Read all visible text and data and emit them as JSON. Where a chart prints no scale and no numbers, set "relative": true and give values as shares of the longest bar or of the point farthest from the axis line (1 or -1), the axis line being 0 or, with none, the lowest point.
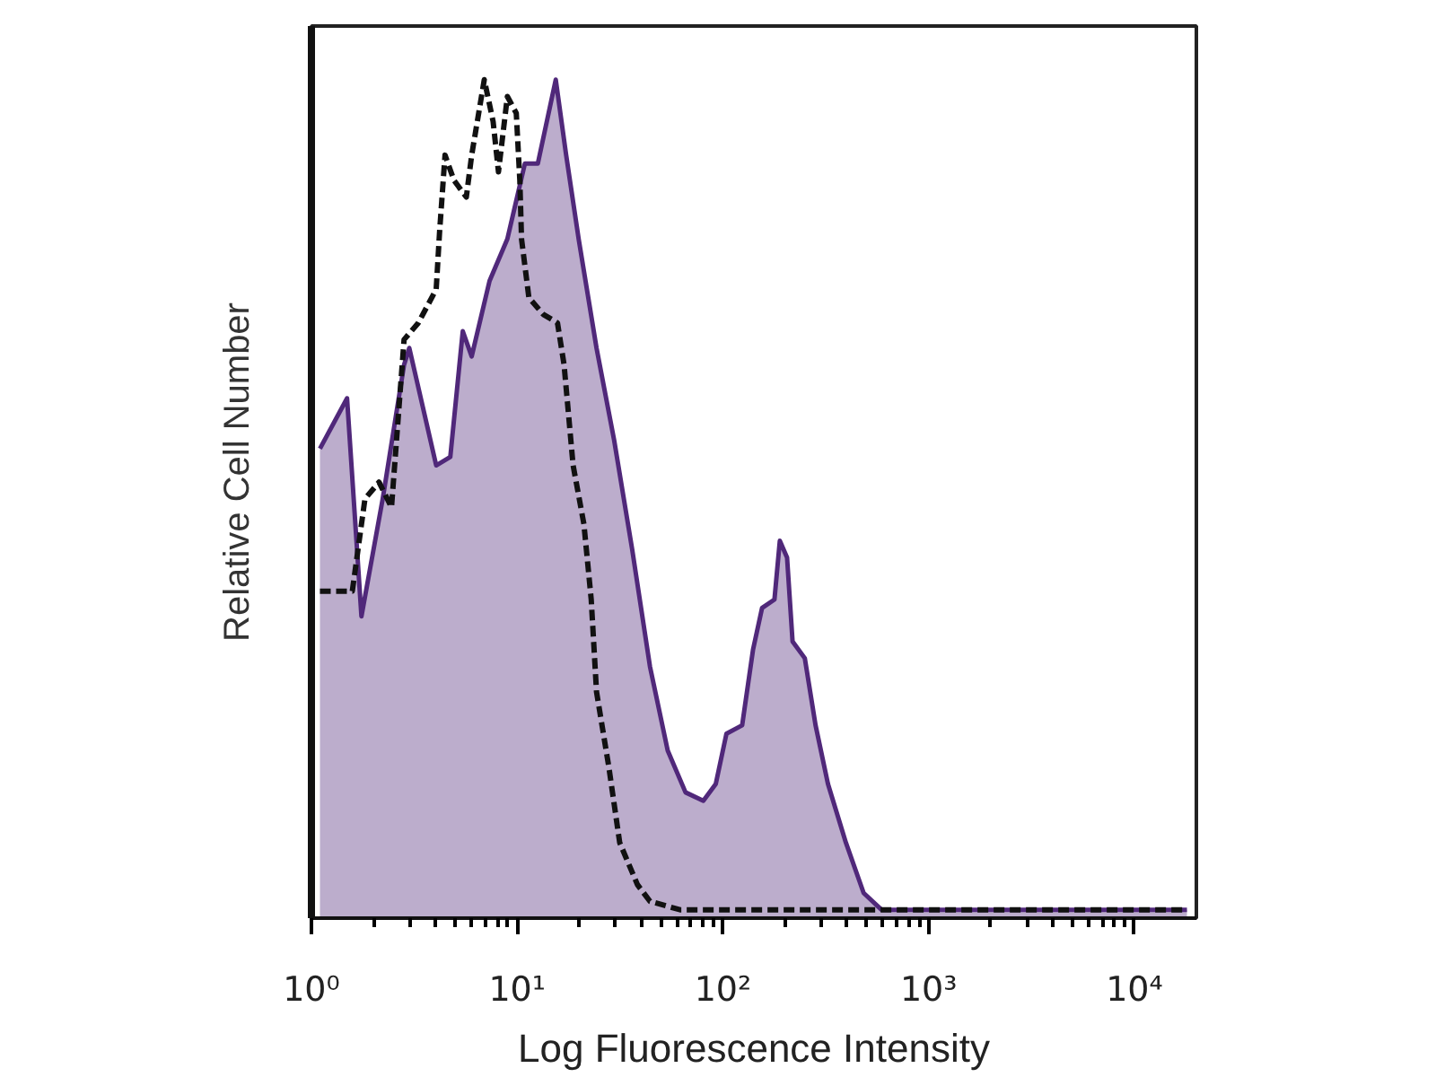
{
  "chart_data": {
    "type": "area",
    "relative": true,
    "xlabel": "Log Fluorescence Intensity",
    "ylabel": "Relative Cell Number",
    "log": "x",
    "tick_labels": "x",
    "xlim": [
      1,
      20000
    ],
    "xticks": [
      {
        "value": 1,
        "label": "10⁰"
      },
      {
        "value": 2,
        "label": null
      },
      {
        "value": 3,
        "label": null
      },
      {
        "value": 4,
        "label": null
      },
      {
        "value": 5,
        "label": null
      },
      {
        "value": 6,
        "label": null
      },
      {
        "value": 7,
        "label": null
      },
      {
        "value": 8,
        "label": null
      },
      {
        "value": 9,
        "label": null
      },
      {
        "value": 10,
        "label": "10¹"
      },
      {
        "value": 20,
        "label": null
      },
      {
        "value": 30,
        "label": null
      },
      {
        "value": 40,
        "label": null
      },
      {
        "value": 50,
        "label": null
      },
      {
        "value": 60,
        "label": null
      },
      {
        "value": 70,
        "label": null
      },
      {
        "value": 80,
        "label": null
      },
      {
        "value": 90,
        "label": null
      },
      {
        "value": 100,
        "label": "10²"
      },
      {
        "value": 200,
        "label": null
      },
      {
        "value": 300,
        "label": null
      },
      {
        "value": 400,
        "label": null
      },
      {
        "value": 500,
        "label": null
      },
      {
        "value": 600,
        "label": null
      },
      {
        "value": 700,
        "label": null
      },
      {
        "value": 800,
        "label": null
      },
      {
        "value": 900,
        "label": null
      },
      {
        "value": 1000,
        "label": "10³"
      },
      {
        "value": 2000,
        "label": null
      },
      {
        "value": 3000,
        "label": null
      },
      {
        "value": 4000,
        "label": null
      },
      {
        "value": 5000,
        "label": null
      },
      {
        "value": 6000,
        "label": null
      },
      {
        "value": 7000,
        "label": null
      },
      {
        "value": 8000,
        "label": null
      },
      {
        "value": 9000,
        "label": null
      },
      {
        "value": 10000,
        "label": "10⁴"
      }
    ],
    "series": [
      {
        "color": "#50287a",
        "line_style": "solid",
        "x": [
          1.1,
          1.49,
          1.75,
          2.22,
          2.82,
          2.99,
          4.04,
          4.73,
          5.44,
          6.01,
          7.34,
          8.96,
          10.9,
          12.6,
          15.4,
          17.3,
          19.9,
          24.3,
          29.6,
          36.2,
          44.2,
          53.9,
          65.8,
          80.3,
          92.3,
          104,
          124,
          140,
          155,
          178,
          189,
          205,
          218,
          250,
          282,
          324,
          396,
          483,
          590,
          1000,
          18000
        ],
        "values": [
          0.56,
          0.62,
          0.36,
          0.5,
          0.66,
          0.68,
          0.54,
          0.55,
          0.7,
          0.67,
          0.76,
          0.81,
          0.9,
          0.9,
          1.0,
          0.91,
          0.81,
          0.68,
          0.57,
          0.44,
          0.3,
          0.2,
          0.15,
          0.14,
          0.16,
          0.22,
          0.23,
          0.32,
          0.37,
          0.38,
          0.45,
          0.43,
          0.33,
          0.31,
          0.23,
          0.16,
          0.09,
          0.03,
          0.01,
          0.01,
          0.01
        ]
      },
      {
        "type": "line",
        "color": "#111111",
        "line_style": "dashed",
        "x": [
          1.1,
          1.58,
          1.82,
          2.13,
          2.45,
          2.82,
          3.31,
          4.04,
          4.2,
          4.46,
          4.93,
          5.66,
          6.01,
          6.92,
          7.64,
          8.11,
          8.96,
          9.9,
          10.3,
          10.5,
          11.4,
          13.4,
          15.7,
          16.9,
          18.7,
          21.1,
          22.9,
          24.3,
          27.9,
          31.5,
          38.4,
          44.2,
          61.9,
          18000
        ],
        "values": [
          0.39,
          0.39,
          0.5,
          0.52,
          0.49,
          0.69,
          0.71,
          0.75,
          0.82,
          0.91,
          0.88,
          0.86,
          0.91,
          1.0,
          0.95,
          0.89,
          0.98,
          0.96,
          0.88,
          0.81,
          0.74,
          0.72,
          0.71,
          0.66,
          0.54,
          0.47,
          0.38,
          0.27,
          0.18,
          0.09,
          0.04,
          0.02,
          0.01,
          0.01
        ]
      }
    ]
  }
}
